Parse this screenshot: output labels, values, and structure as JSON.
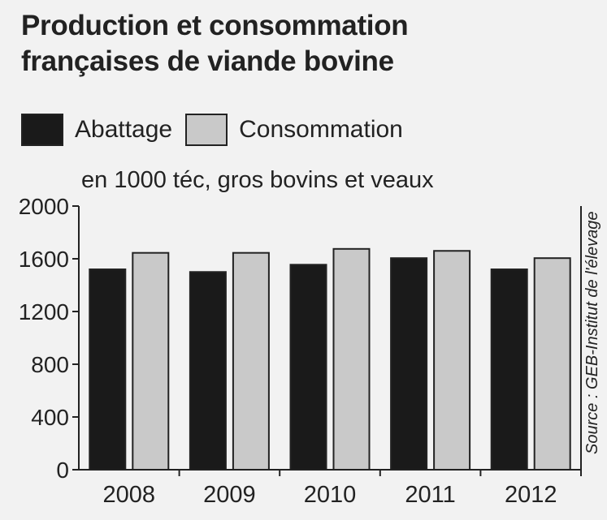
{
  "colors": {
    "abattage": "#1a1a1a",
    "consommation": "#c9c9c9",
    "axis": "#222222",
    "background": "#f2f2f2"
  },
  "chart_data": {
    "type": "bar",
    "title": "Production et consommation françaises de viande bovine",
    "title_line1": "Production et consommation",
    "title_line2": "françaises de viande bovine",
    "subtitle": "en 1000 téc, gros bovins et veaux",
    "source": "Source : GEB-Institut de l'élevage",
    "categories": [
      "2008",
      "2009",
      "2010",
      "2011",
      "2012"
    ],
    "series": [
      {
        "name": "Abattage",
        "values": [
          1520,
          1500,
          1555,
          1605,
          1520
        ]
      },
      {
        "name": "Consommation",
        "values": [
          1645,
          1645,
          1675,
          1660,
          1605
        ]
      }
    ],
    "ylim": [
      0,
      2000
    ],
    "yticks": [
      0,
      400,
      800,
      1200,
      1600,
      2000
    ],
    "grid": false,
    "legend_position": "top-left"
  }
}
